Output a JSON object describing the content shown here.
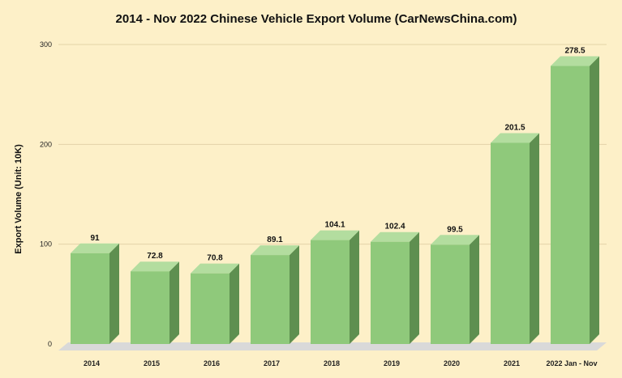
{
  "chart_data": {
    "type": "bar",
    "title": "2014 - Nov 2022 Chinese Vehicle Export Volume (CarNewsChina.com)",
    "xlabel": "",
    "ylabel": "Export Volume (Unit: 10K)",
    "categories": [
      "2014",
      "2015",
      "2016",
      "2017",
      "2018",
      "2019",
      "2020",
      "2021",
      "2022 Jan - Nov"
    ],
    "values": [
      91,
      72.8,
      70.8,
      89.1,
      104.1,
      102.4,
      99.5,
      201.5,
      278.5
    ],
    "data_labels": [
      "91",
      "72.8",
      "70.8",
      "89.1",
      "104.1",
      "102.4",
      "99.5",
      "201.5",
      "278.5"
    ],
    "ylim": [
      0,
      300
    ],
    "yticks": [
      0,
      100,
      200,
      300
    ],
    "ytick_labels": [
      "0",
      "100",
      "200",
      "300"
    ],
    "grid": true,
    "legend": "none",
    "colors": {
      "background": "#fdf0c8",
      "bar_front": "#8fc97b",
      "bar_side": "#5e8f50",
      "bar_top": "#b3dd9f",
      "gridline": "#e2d3a8",
      "floor": "#d9d9d9"
    }
  }
}
